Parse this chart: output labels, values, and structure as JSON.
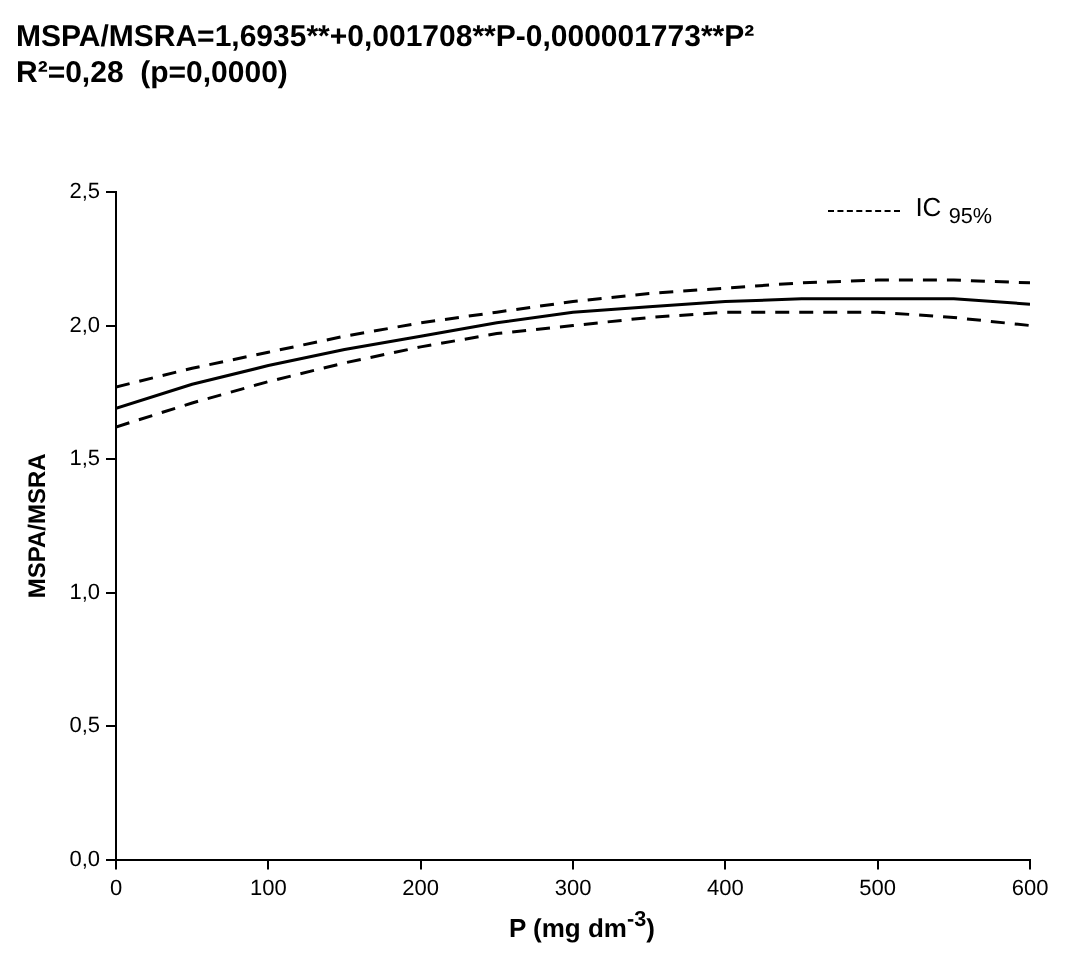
{
  "chart_data": {
    "type": "line",
    "title": "MSPA/MSRA=1,6935**+0,001708**P-0,000001773**P²",
    "subtitle": "R²=0,28  (p=0,0000)",
    "xlabel": "P (mg dm$^{-3}$)",
    "ylabel": "MSPA/MSRA",
    "x": [
      0,
      50,
      100,
      150,
      200,
      250,
      300,
      350,
      400,
      450,
      500,
      550,
      600
    ],
    "series": [
      {
        "color": "#000000",
        "line_style": "solid",
        "values": [
          1.69,
          1.78,
          1.85,
          1.91,
          1.96,
          2.01,
          2.05,
          2.07,
          2.09,
          2.1,
          2.1,
          2.1,
          2.08
        ]
      },
      {
        "name": "IC $_{95%}$",
        "color": "#000000",
        "line_style": "dashed",
        "values": [
          1.77,
          1.84,
          1.9,
          1.96,
          2.01,
          2.05,
          2.09,
          2.12,
          2.14,
          2.16,
          2.17,
          2.17,
          2.16
        ]
      },
      {
        "color": "#000000",
        "line_style": "dashed",
        "values": [
          1.62,
          1.71,
          1.79,
          1.86,
          1.92,
          1.97,
          2.0,
          2.03,
          2.05,
          2.05,
          2.05,
          2.03,
          2.0
        ]
      }
    ],
    "xlim": [
      0,
      600
    ],
    "xticks": [
      0,
      100,
      200,
      300,
      400,
      500,
      600
    ],
    "ylim": [
      0,
      2.5
    ],
    "yticks": [
      {
        "value": 0,
        "label": "0,0"
      },
      {
        "value": 0.5,
        "label": "0,5"
      },
      {
        "value": 1,
        "label": "1,0"
      },
      {
        "value": 1.5,
        "label": "1,5"
      },
      {
        "value": 2,
        "label": "2,0"
      },
      {
        "value": 2.5,
        "label": "2,5"
      }
    ],
    "marker": "none",
    "grid": false,
    "legend": "top right"
  }
}
